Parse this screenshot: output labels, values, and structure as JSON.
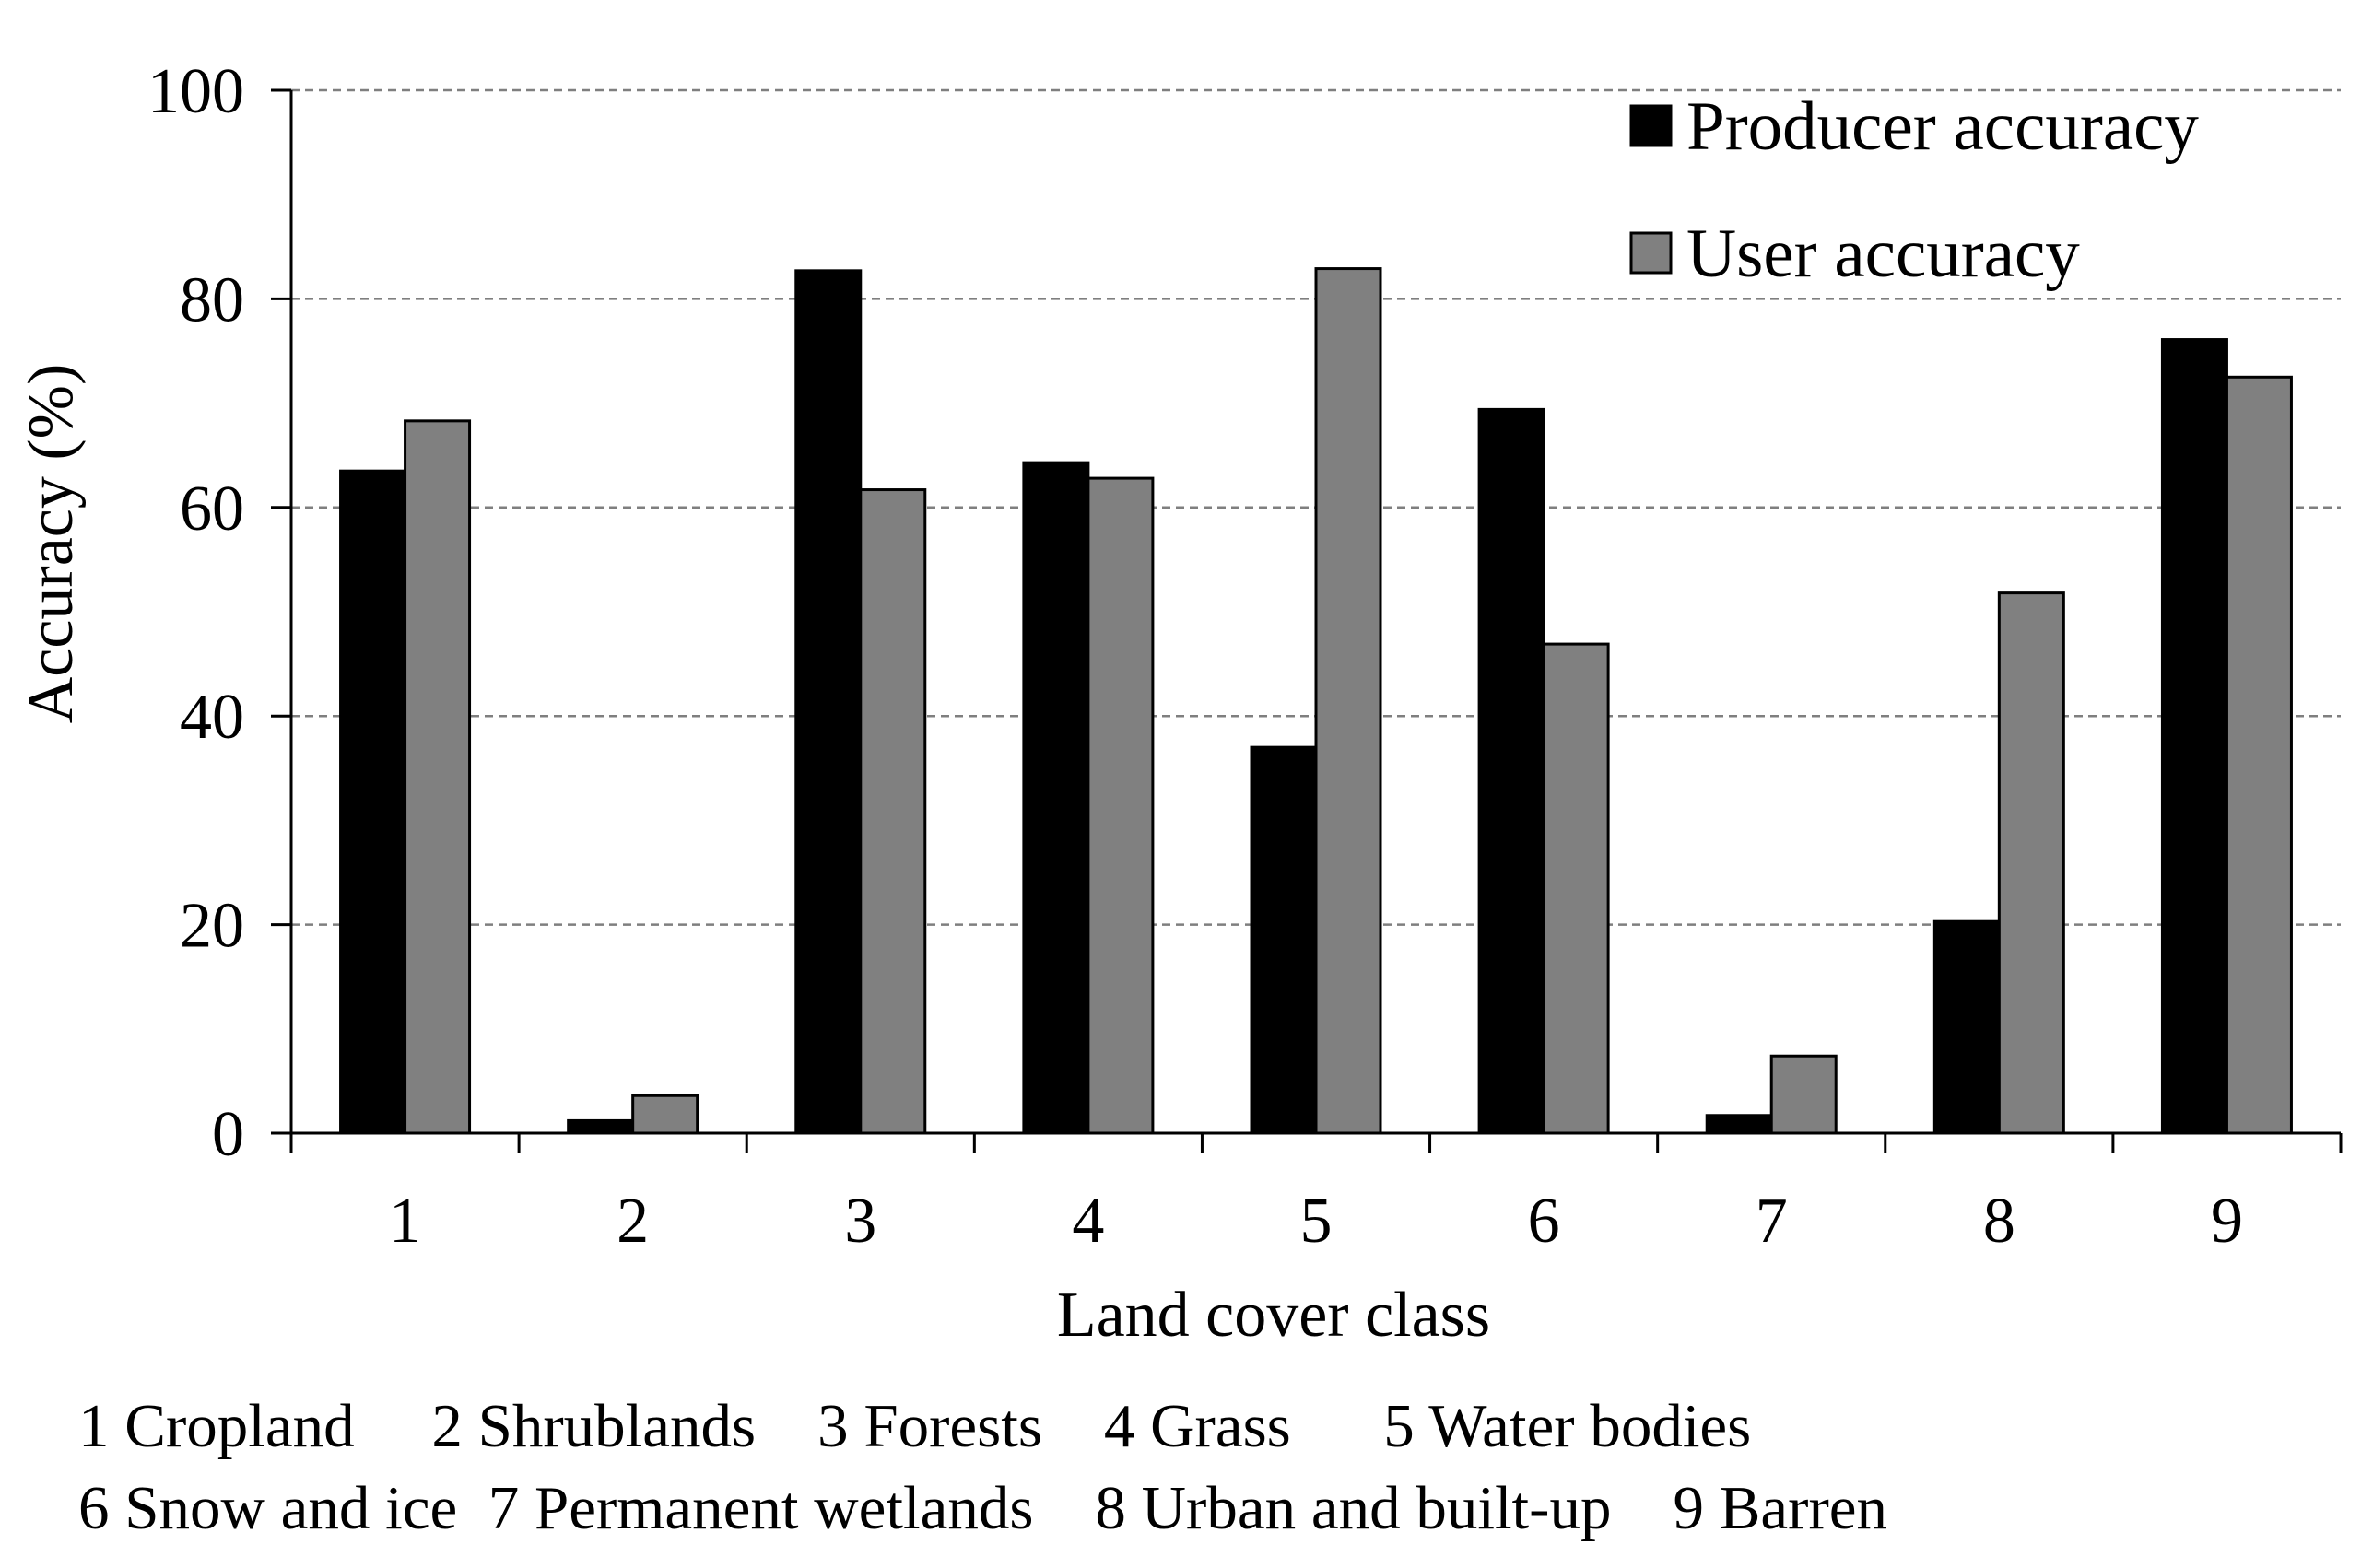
{
  "chart_data": {
    "type": "bar",
    "title": "",
    "xlabel": "Land cover class",
    "ylabel": "Accuracy (%)",
    "ylim": [
      0,
      100
    ],
    "yticks": [
      0,
      20,
      40,
      60,
      80,
      100
    ],
    "grid": true,
    "legend_position": "top-right",
    "categories": [
      "1",
      "2",
      "3",
      "4",
      "5",
      "6",
      "7",
      "8",
      "9"
    ],
    "series": [
      {
        "name": "Producer accuracy",
        "color": "#000000",
        "values": [
          63.5,
          1.2,
          82.7,
          64.3,
          37.0,
          69.4,
          1.7,
          20.3,
          76.1
        ]
      },
      {
        "name": "User accuracy",
        "color": "#808080",
        "values": [
          68.3,
          3.6,
          61.7,
          62.8,
          82.9,
          46.9,
          7.4,
          51.8,
          72.5
        ]
      }
    ],
    "category_notes": [
      "1 Cropland     2 Shrublands    3 Forests    4 Grass      5 Water bodies",
      "6 Snow and ice  7 Permanent wetlands    8 Urban and built-up    9 Barren"
    ]
  }
}
